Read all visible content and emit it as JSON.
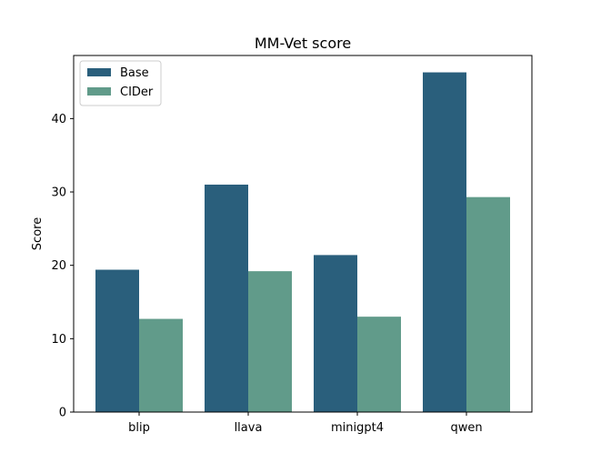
{
  "chart_data": {
    "type": "bar",
    "title": "MM-Vet score",
    "xlabel": "",
    "ylabel": "Score",
    "categories": [
      "blip",
      "llava",
      "minigpt4",
      "qwen"
    ],
    "series": [
      {
        "name": "Base",
        "values": [
          19.4,
          31.0,
          21.4,
          46.3
        ],
        "color": "#2a5f7c"
      },
      {
        "name": "CIDer",
        "values": [
          12.7,
          19.2,
          13.0,
          29.3
        ],
        "color": "#619b8a"
      }
    ],
    "ylim": [
      0,
      48.6
    ],
    "yticks": [
      0,
      10,
      20,
      30,
      40
    ],
    "grid": false,
    "legend_position": "top-left"
  }
}
